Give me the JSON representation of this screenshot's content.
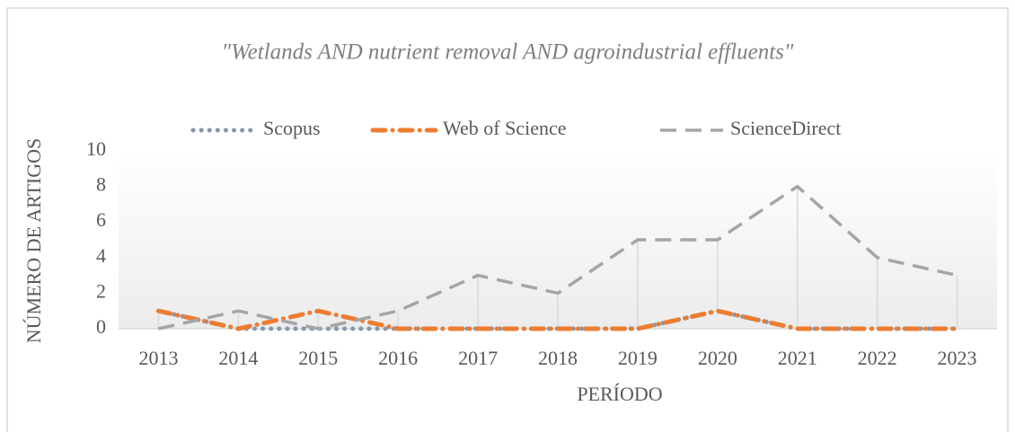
{
  "chart_data": {
    "type": "line",
    "title": "\"Wetlands AND nutrient removal AND agroindustrial effluents\"",
    "x_label": "PERÍODO",
    "y_label": "NÚMERO DE ARTIGOS",
    "categories": [
      "2013",
      "2014",
      "2015",
      "2016",
      "2017",
      "2018",
      "2019",
      "2020",
      "2021",
      "2022",
      "2023"
    ],
    "series": [
      {
        "name": "Scopus",
        "color": "#8497b0",
        "dash": "dot",
        "values": [
          1,
          0,
          0,
          0,
          0,
          0,
          0,
          1,
          0,
          0,
          0
        ]
      },
      {
        "name": "Web of Science",
        "color": "#ed7d31",
        "dash": "dashdot",
        "values": [
          1,
          0,
          1,
          0,
          0,
          0,
          0,
          1,
          0,
          0,
          0
        ]
      },
      {
        "name": "ScienceDirect",
        "color": "#a5a5a5",
        "dash": "longdash",
        "values": [
          0,
          1,
          0,
          1,
          3,
          2,
          5,
          5,
          8,
          4,
          3
        ]
      }
    ],
    "ylim": [
      0,
      10
    ],
    "yticks": [
      0,
      2,
      4,
      6,
      8,
      10
    ],
    "legend": "top",
    "drop_lines": true
  }
}
